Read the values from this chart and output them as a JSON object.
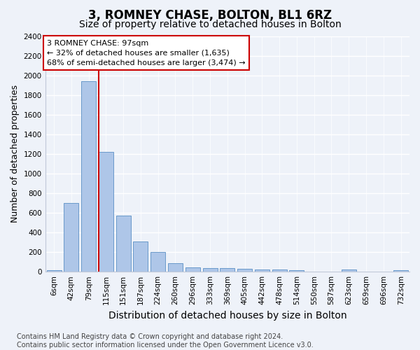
{
  "title": "3, ROMNEY CHASE, BOLTON, BL1 6RZ",
  "subtitle": "Size of property relative to detached houses in Bolton",
  "xlabel": "Distribution of detached houses by size in Bolton",
  "ylabel": "Number of detached properties",
  "bar_labels": [
    "6sqm",
    "42sqm",
    "79sqm",
    "115sqm",
    "151sqm",
    "187sqm",
    "224sqm",
    "260sqm",
    "296sqm",
    "333sqm",
    "369sqm",
    "405sqm",
    "442sqm",
    "478sqm",
    "514sqm",
    "550sqm",
    "587sqm",
    "623sqm",
    "659sqm",
    "696sqm",
    "732sqm"
  ],
  "bar_values": [
    15,
    700,
    1940,
    1220,
    575,
    305,
    200,
    85,
    45,
    38,
    35,
    30,
    22,
    20,
    15,
    0,
    0,
    20,
    0,
    0,
    15
  ],
  "bar_color": "#aec6e8",
  "bar_edge_color": "#5a8fc4",
  "marker_color": "#cc0000",
  "annotation_text": "3 ROMNEY CHASE: 97sqm\n← 32% of detached houses are smaller (1,635)\n68% of semi-detached houses are larger (3,474) →",
  "annotation_box_color": "#cc0000",
  "ylim": [
    0,
    2400
  ],
  "yticks": [
    0,
    200,
    400,
    600,
    800,
    1000,
    1200,
    1400,
    1600,
    1800,
    2000,
    2200,
    2400
  ],
  "footer_text": "Contains HM Land Registry data © Crown copyright and database right 2024.\nContains public sector information licensed under the Open Government Licence v3.0.",
  "bg_color": "#eef2f9",
  "grid_color": "#ffffff",
  "title_fontsize": 12,
  "subtitle_fontsize": 10,
  "axis_label_fontsize": 9,
  "tick_fontsize": 7.5,
  "footer_fontsize": 7
}
